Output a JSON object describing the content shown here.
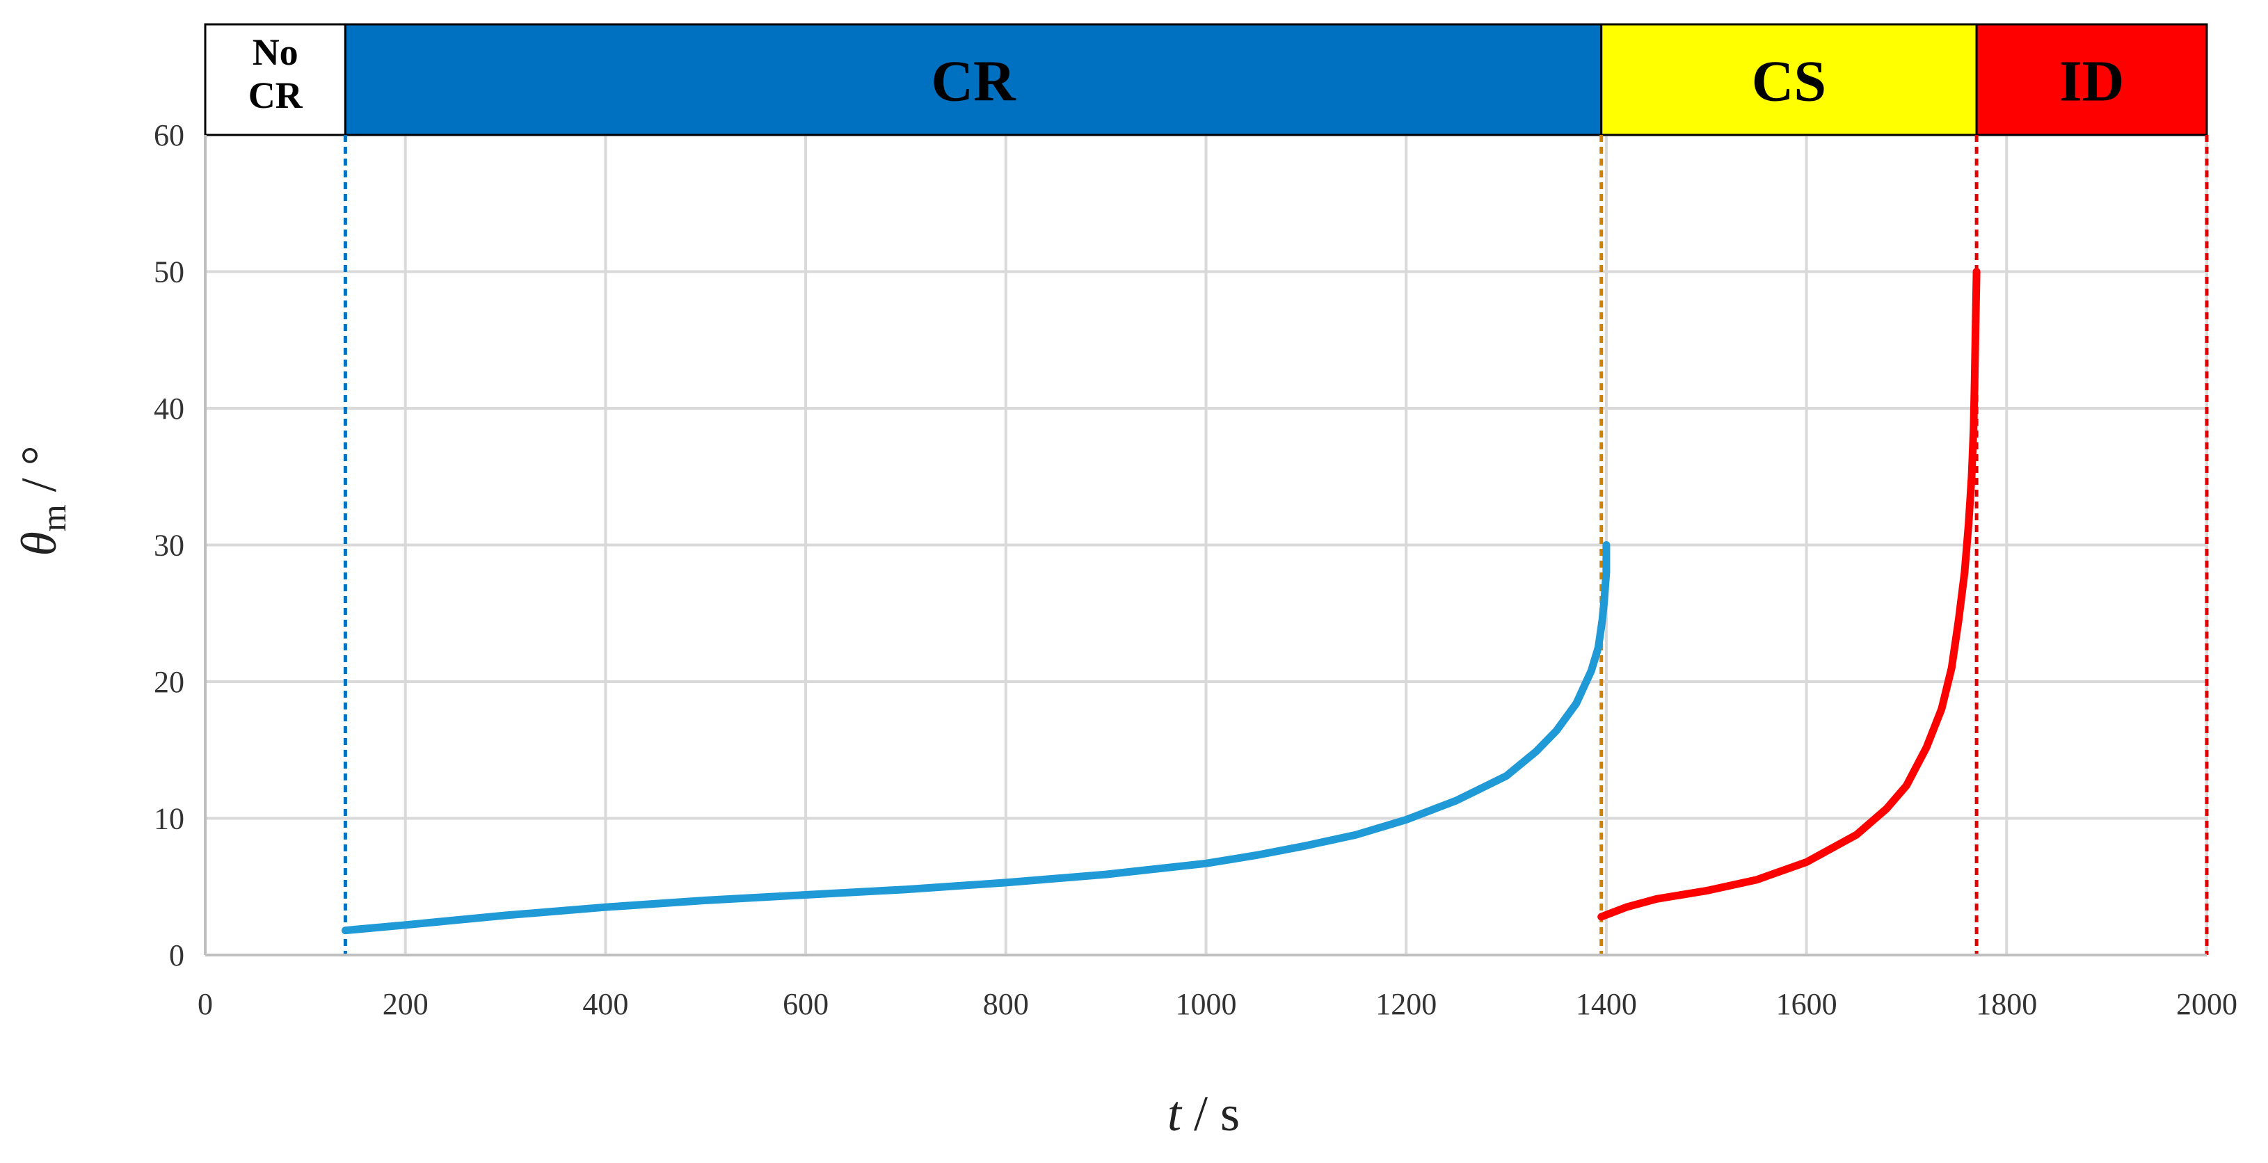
{
  "chart_data": {
    "type": "line",
    "title": "",
    "xlabel": "t / s",
    "ylabel": "θm / °",
    "xlim": [
      0,
      2000
    ],
    "ylim": [
      0,
      60
    ],
    "x_ticks": [
      0,
      200,
      400,
      600,
      800,
      1000,
      1200,
      1400,
      1600,
      1800,
      2000
    ],
    "y_ticks": [
      0,
      10,
      20,
      30,
      40,
      50,
      60
    ],
    "grid": true,
    "regions": [
      {
        "label": "No CR",
        "label_lines": [
          "No",
          "CR"
        ],
        "x_start": 0,
        "x_end": 140,
        "color": "#ffffff",
        "divider_color": "#000000"
      },
      {
        "label": "CR",
        "x_start": 140,
        "x_end": 1395,
        "color": "#0070c0",
        "divider_color": "#0070c0"
      },
      {
        "label": "CS",
        "x_start": 1395,
        "x_end": 1770,
        "color": "#ffff00",
        "divider_color": "#d08000"
      },
      {
        "label": "ID",
        "x_start": 1770,
        "x_end": 2000,
        "color": "#ff0000",
        "divider_color": "#e00000"
      }
    ],
    "series": [
      {
        "color": "#1f9ad6",
        "x": [
          140,
          200,
          300,
          400,
          500,
          600,
          700,
          800,
          900,
          1000,
          1050,
          1100,
          1150,
          1200,
          1250,
          1300,
          1330,
          1350,
          1370,
          1385,
          1392,
          1396,
          1398,
          1400,
          1400
        ],
        "y": [
          1.8,
          2.2,
          2.9,
          3.5,
          4.0,
          4.4,
          4.8,
          5.3,
          5.9,
          6.7,
          7.3,
          8.0,
          8.8,
          9.9,
          11.3,
          13.1,
          14.9,
          16.4,
          18.4,
          20.8,
          22.5,
          24.5,
          26.0,
          28.0,
          30.0
        ]
      },
      {
        "color": "#ff0000",
        "x": [
          1395,
          1420,
          1450,
          1500,
          1550,
          1600,
          1650,
          1680,
          1700,
          1720,
          1735,
          1745,
          1752,
          1758,
          1762,
          1765,
          1767,
          1768,
          1769,
          1770
        ],
        "y": [
          2.8,
          3.5,
          4.1,
          4.7,
          5.5,
          6.8,
          8.8,
          10.7,
          12.4,
          15.2,
          18.0,
          21.0,
          24.5,
          28.0,
          31.5,
          35.0,
          38.5,
          42.0,
          46.0,
          50.0
        ]
      }
    ]
  }
}
